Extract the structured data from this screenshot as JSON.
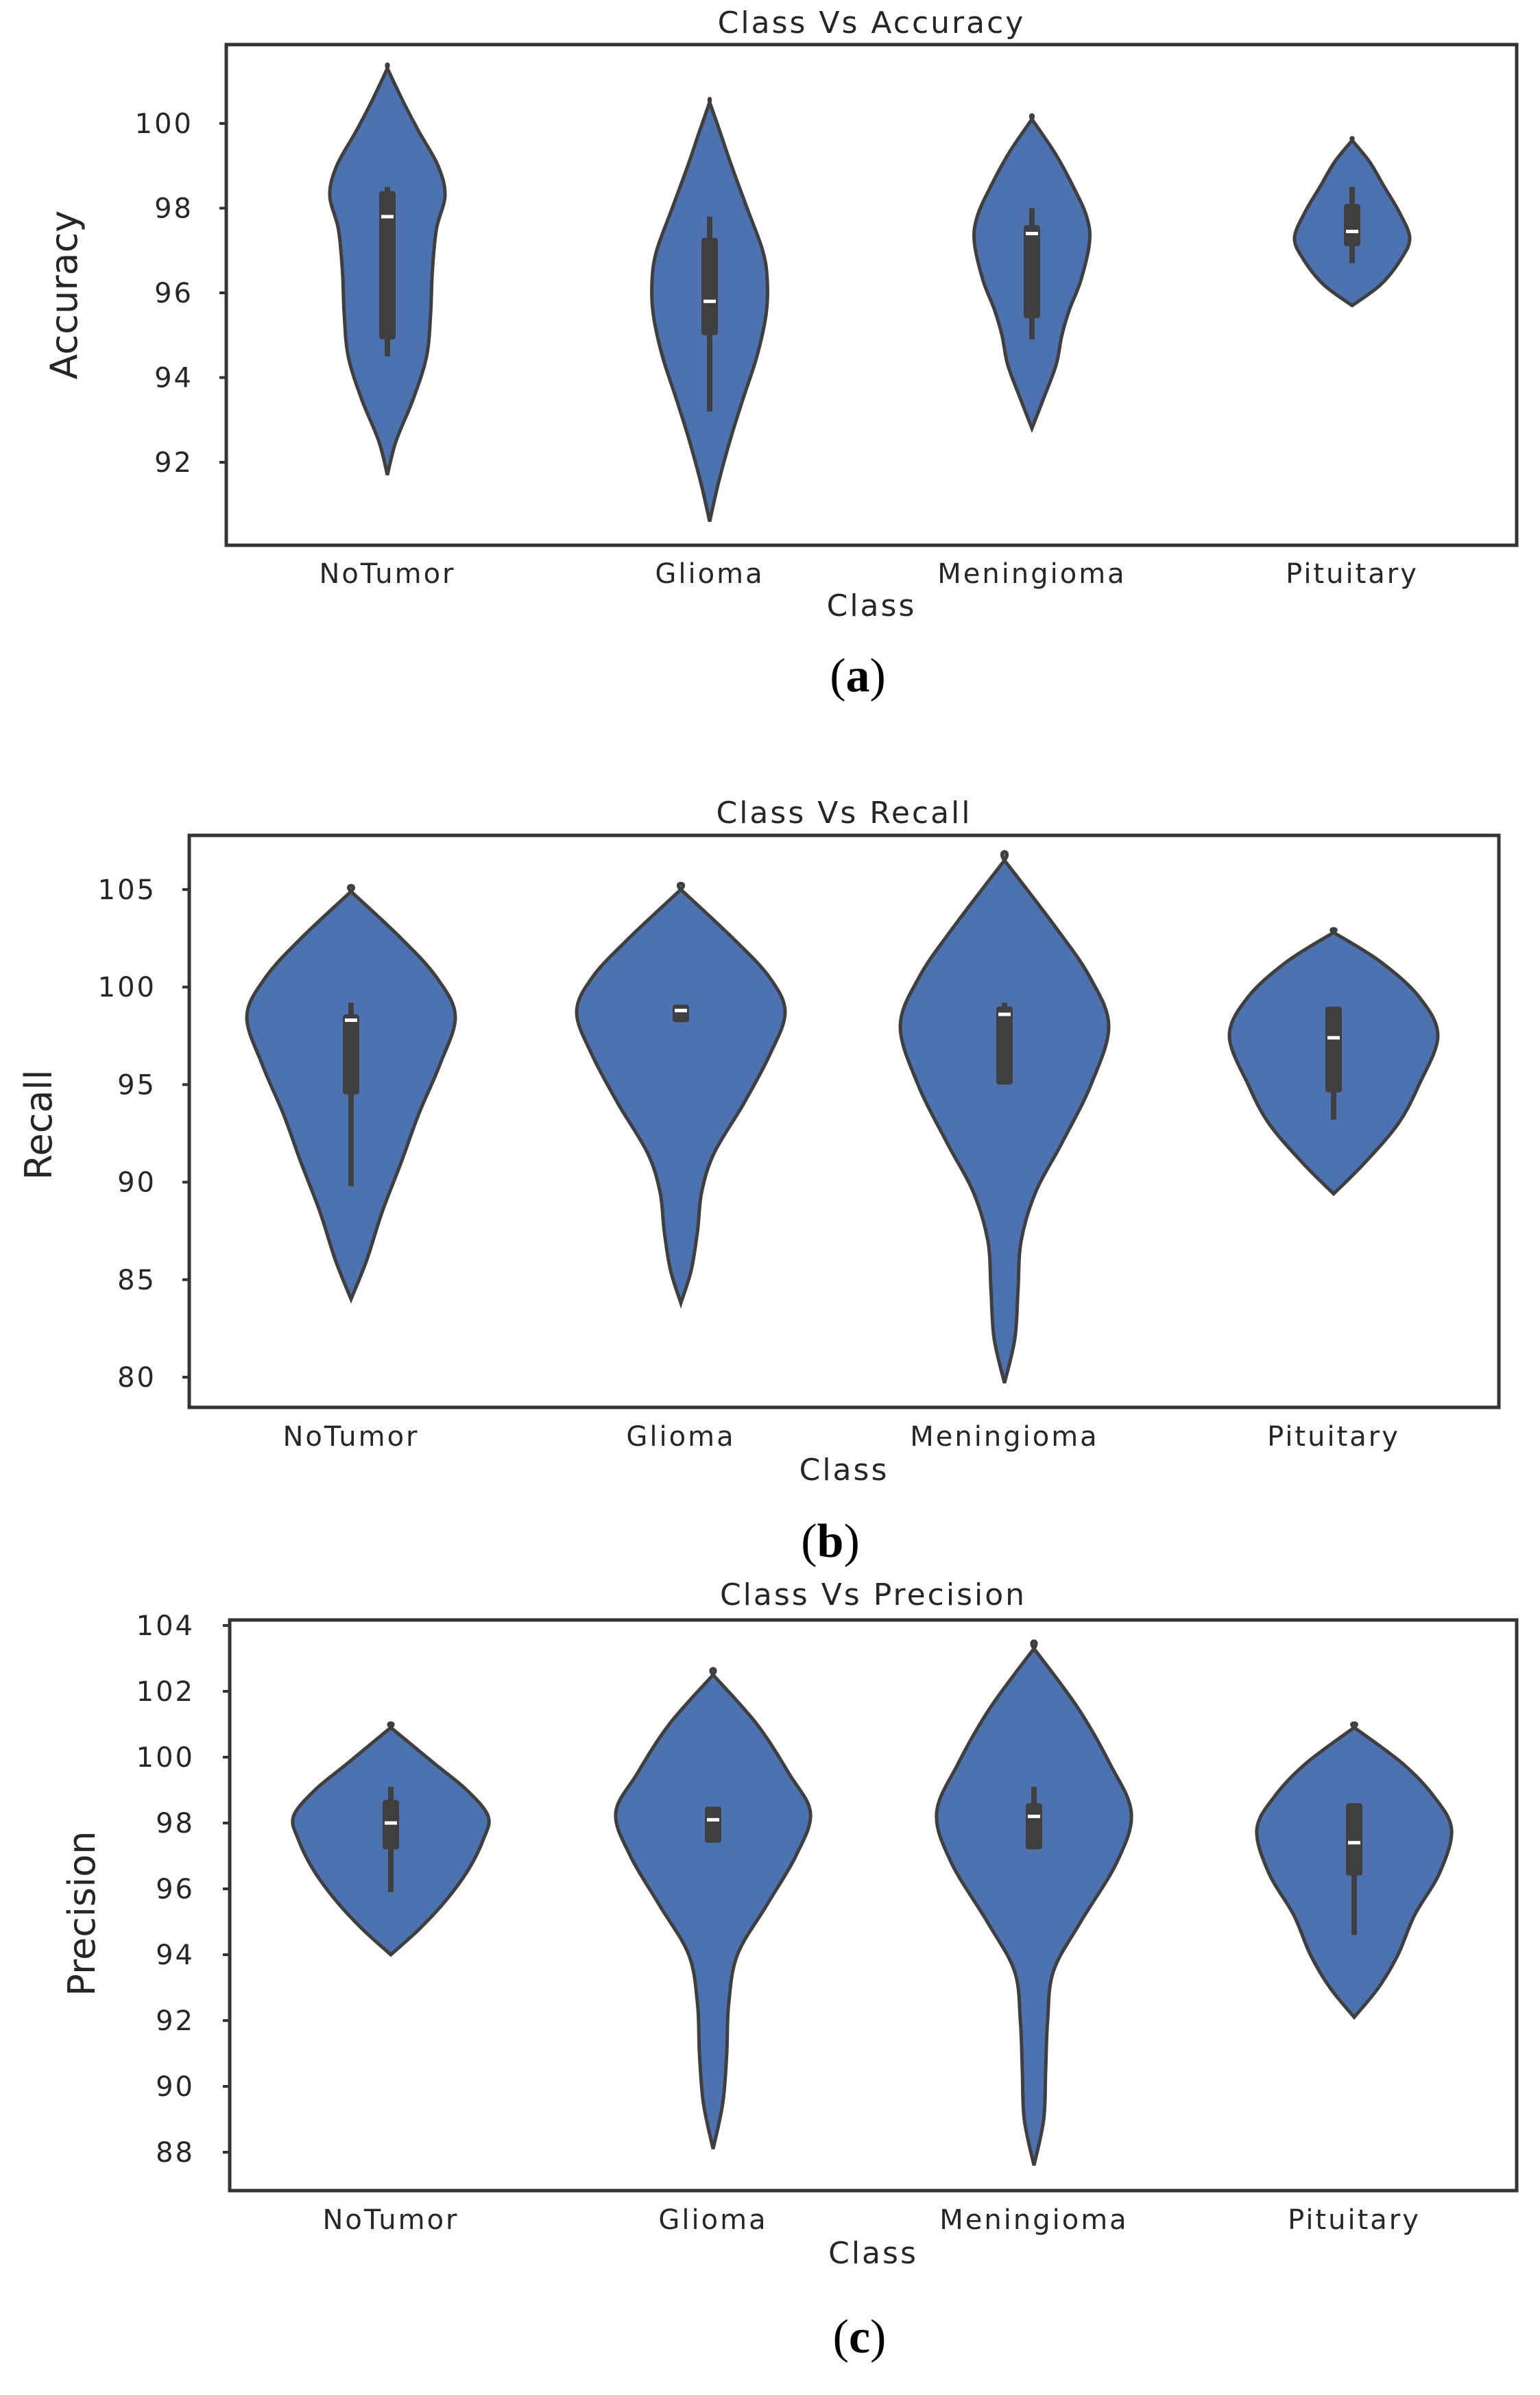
{
  "chart_data": [
    {
      "type": "violin",
      "panel": "a",
      "title": "Class Vs Accuracy",
      "xlabel": "Class",
      "ylabel": "Accuracy",
      "categories": [
        "NoTumor",
        "Glioma",
        "Meningioma",
        "Pituitary"
      ],
      "yticks": [
        92,
        94,
        96,
        98,
        100
      ],
      "ylim": [
        90.2,
        101.8
      ],
      "grid": false,
      "violins": [
        {
          "category": "NoTumor",
          "min": 91.7,
          "max": 101.3,
          "q1": 94.9,
          "median": 97.8,
          "q3": 98.4,
          "whisker_low": 94.5,
          "whisker_high": 98.5,
          "profile": [
            [
              91.7,
              0.0
            ],
            [
              92.5,
              0.15
            ],
            [
              93.5,
              0.45
            ],
            [
              94.5,
              0.68
            ],
            [
              95.5,
              0.75
            ],
            [
              96.5,
              0.78
            ],
            [
              97.5,
              0.85
            ],
            [
              98.3,
              1.0
            ],
            [
              99.0,
              0.88
            ],
            [
              99.8,
              0.55
            ],
            [
              100.5,
              0.28
            ],
            [
              101.3,
              0.0
            ]
          ]
        },
        {
          "category": "Glioma",
          "min": 90.6,
          "max": 100.5,
          "q1": 95.0,
          "median": 95.8,
          "q3": 97.3,
          "whisker_low": 93.2,
          "whisker_high": 97.8,
          "profile": [
            [
              90.6,
              0.0
            ],
            [
              91.5,
              0.15
            ],
            [
              92.5,
              0.35
            ],
            [
              93.5,
              0.58
            ],
            [
              94.5,
              0.82
            ],
            [
              95.5,
              0.98
            ],
            [
              96.3,
              1.0
            ],
            [
              97.0,
              0.92
            ],
            [
              98.0,
              0.65
            ],
            [
              99.0,
              0.38
            ],
            [
              99.8,
              0.18
            ],
            [
              100.5,
              0.0
            ]
          ]
        },
        {
          "category": "Meningioma",
          "min": 92.8,
          "max": 100.1,
          "q1": 95.4,
          "median": 97.4,
          "q3": 97.6,
          "whisker_low": 94.9,
          "whisker_high": 98.0,
          "profile": [
            [
              92.8,
              0.0
            ],
            [
              93.5,
              0.2
            ],
            [
              94.3,
              0.42
            ],
            [
              95.0,
              0.52
            ],
            [
              95.6,
              0.65
            ],
            [
              96.3,
              0.85
            ],
            [
              97.2,
              1.0
            ],
            [
              97.8,
              0.95
            ],
            [
              98.5,
              0.72
            ],
            [
              99.3,
              0.4
            ],
            [
              100.1,
              0.0
            ]
          ]
        },
        {
          "category": "Pituitary",
          "min": 95.7,
          "max": 99.6,
          "q1": 97.1,
          "median": 97.45,
          "q3": 98.1,
          "whisker_low": 96.7,
          "whisker_high": 98.5,
          "profile": [
            [
              95.7,
              0.0
            ],
            [
              96.2,
              0.5
            ],
            [
              96.8,
              0.85
            ],
            [
              97.3,
              1.0
            ],
            [
              97.9,
              0.82
            ],
            [
              98.5,
              0.56
            ],
            [
              99.1,
              0.3
            ],
            [
              99.6,
              0.0
            ]
          ]
        }
      ]
    },
    {
      "type": "violin",
      "panel": "b",
      "title": "Class Vs Recall",
      "xlabel": "Class",
      "ylabel": "Recall",
      "categories": [
        "NoTumor",
        "Glioma",
        "Meningioma",
        "Pituitary"
      ],
      "yticks": [
        80,
        85,
        90,
        95,
        100,
        105
      ],
      "ylim": [
        78.5,
        107.9
      ],
      "grid": false,
      "violins": [
        {
          "category": "NoTumor",
          "min": 84.0,
          "max": 104.9,
          "q1": 94.5,
          "median": 98.3,
          "q3": 98.6,
          "whisker_low": 89.8,
          "whisker_high": 99.2,
          "profile": [
            [
              84.0,
              0.0
            ],
            [
              86.0,
              0.15
            ],
            [
              88.5,
              0.3
            ],
            [
              91.0,
              0.48
            ],
            [
              93.5,
              0.65
            ],
            [
              96.0,
              0.85
            ],
            [
              98.5,
              1.0
            ],
            [
              100.5,
              0.82
            ],
            [
              102.5,
              0.48
            ],
            [
              104.9,
              0.0
            ]
          ]
        },
        {
          "category": "Glioma",
          "min": 83.8,
          "max": 105.0,
          "q1": 98.2,
          "median": 98.8,
          "q3": 99.1,
          "whisker_low": 98.2,
          "whisker_high": 99.1,
          "profile": [
            [
              83.8,
              0.0
            ],
            [
              85.5,
              0.1
            ],
            [
              87.5,
              0.16
            ],
            [
              89.5,
              0.2
            ],
            [
              91.5,
              0.32
            ],
            [
              94.0,
              0.6
            ],
            [
              96.5,
              0.85
            ],
            [
              98.7,
              1.0
            ],
            [
              100.5,
              0.85
            ],
            [
              102.5,
              0.5
            ],
            [
              105.0,
              0.0
            ]
          ]
        },
        {
          "category": "Meningioma",
          "min": 79.7,
          "max": 106.5,
          "q1": 95.0,
          "median": 98.6,
          "q3": 99.0,
          "whisker_low": 95.0,
          "whisker_high": 99.2,
          "profile": [
            [
              79.7,
              0.0
            ],
            [
              82.0,
              0.1
            ],
            [
              84.5,
              0.13
            ],
            [
              87.0,
              0.16
            ],
            [
              89.5,
              0.3
            ],
            [
              92.0,
              0.55
            ],
            [
              95.0,
              0.83
            ],
            [
              98.0,
              1.0
            ],
            [
              100.5,
              0.82
            ],
            [
              103.0,
              0.5
            ],
            [
              106.5,
              0.0
            ]
          ]
        },
        {
          "category": "Pituitary",
          "min": 89.4,
          "max": 102.8,
          "q1": 94.6,
          "median": 97.4,
          "q3": 99.0,
          "whisker_low": 93.2,
          "whisker_high": 99.0,
          "profile": [
            [
              89.4,
              0.0
            ],
            [
              91.0,
              0.3
            ],
            [
              93.0,
              0.62
            ],
            [
              95.0,
              0.82
            ],
            [
              97.5,
              1.0
            ],
            [
              99.5,
              0.82
            ],
            [
              101.3,
              0.45
            ],
            [
              102.8,
              0.0
            ]
          ]
        }
      ]
    },
    {
      "type": "violin",
      "panel": "c",
      "title": "Class Vs Precision",
      "xlabel": "Class",
      "ylabel": "Precision",
      "categories": [
        "NoTumor",
        "Glioma",
        "Meningioma",
        "Pituitary"
      ],
      "yticks": [
        88,
        90,
        92,
        94,
        96,
        98,
        100,
        102,
        104
      ],
      "ylim": [
        87.0,
        104.4
      ],
      "grid": false,
      "violins": [
        {
          "category": "NoTumor",
          "min": 94.0,
          "max": 100.9,
          "q1": 97.2,
          "median": 98.0,
          "q3": 98.7,
          "whisker_low": 95.9,
          "whisker_high": 99.1,
          "profile": [
            [
              94.0,
              0.0
            ],
            [
              94.8,
              0.3
            ],
            [
              95.7,
              0.58
            ],
            [
              96.6,
              0.8
            ],
            [
              97.5,
              0.95
            ],
            [
              98.2,
              1.0
            ],
            [
              99.0,
              0.78
            ],
            [
              99.8,
              0.45
            ],
            [
              100.9,
              0.0
            ]
          ]
        },
        {
          "category": "Glioma",
          "min": 88.1,
          "max": 102.5,
          "q1": 97.4,
          "median": 98.1,
          "q3": 98.5,
          "whisker_low": 97.4,
          "whisker_high": 98.5,
          "profile": [
            [
              88.1,
              0.0
            ],
            [
              89.5,
              0.1
            ],
            [
              91.0,
              0.14
            ],
            [
              92.5,
              0.16
            ],
            [
              94.0,
              0.25
            ],
            [
              95.5,
              0.55
            ],
            [
              97.0,
              0.85
            ],
            [
              98.3,
              1.0
            ],
            [
              99.5,
              0.78
            ],
            [
              101.0,
              0.45
            ],
            [
              102.5,
              0.0
            ]
          ]
        },
        {
          "category": "Meningioma",
          "min": 87.6,
          "max": 103.3,
          "q1": 97.2,
          "median": 98.2,
          "q3": 98.6,
          "whisker_low": 97.2,
          "whisker_high": 99.1,
          "profile": [
            [
              87.6,
              0.0
            ],
            [
              89.0,
              0.1
            ],
            [
              90.5,
              0.12
            ],
            [
              92.0,
              0.14
            ],
            [
              93.5,
              0.2
            ],
            [
              95.0,
              0.48
            ],
            [
              96.8,
              0.85
            ],
            [
              98.3,
              1.0
            ],
            [
              99.8,
              0.78
            ],
            [
              101.5,
              0.45
            ],
            [
              103.3,
              0.0
            ]
          ]
        },
        {
          "category": "Pituitary",
          "min": 92.1,
          "max": 100.9,
          "q1": 96.4,
          "median": 97.4,
          "q3": 98.6,
          "whisker_low": 94.6,
          "whisker_high": 98.6,
          "profile": [
            [
              92.1,
              0.0
            ],
            [
              93.0,
              0.25
            ],
            [
              94.0,
              0.45
            ],
            [
              95.2,
              0.62
            ],
            [
              96.5,
              0.88
            ],
            [
              97.8,
              1.0
            ],
            [
              98.8,
              0.82
            ],
            [
              99.8,
              0.5
            ],
            [
              100.9,
              0.0
            ]
          ]
        }
      ]
    }
  ],
  "panel_labels": [
    {
      "open": "(",
      "letter": "a",
      "close": ")"
    },
    {
      "open": "(",
      "letter": "b",
      "close": ")"
    },
    {
      "open": "(",
      "letter": "c",
      "close": ")"
    }
  ],
  "colors": {
    "violin_fill": "#4c72b0",
    "violin_edge": "#3f3f3f",
    "box": "#3f3f3f",
    "median": "#ffffff"
  }
}
